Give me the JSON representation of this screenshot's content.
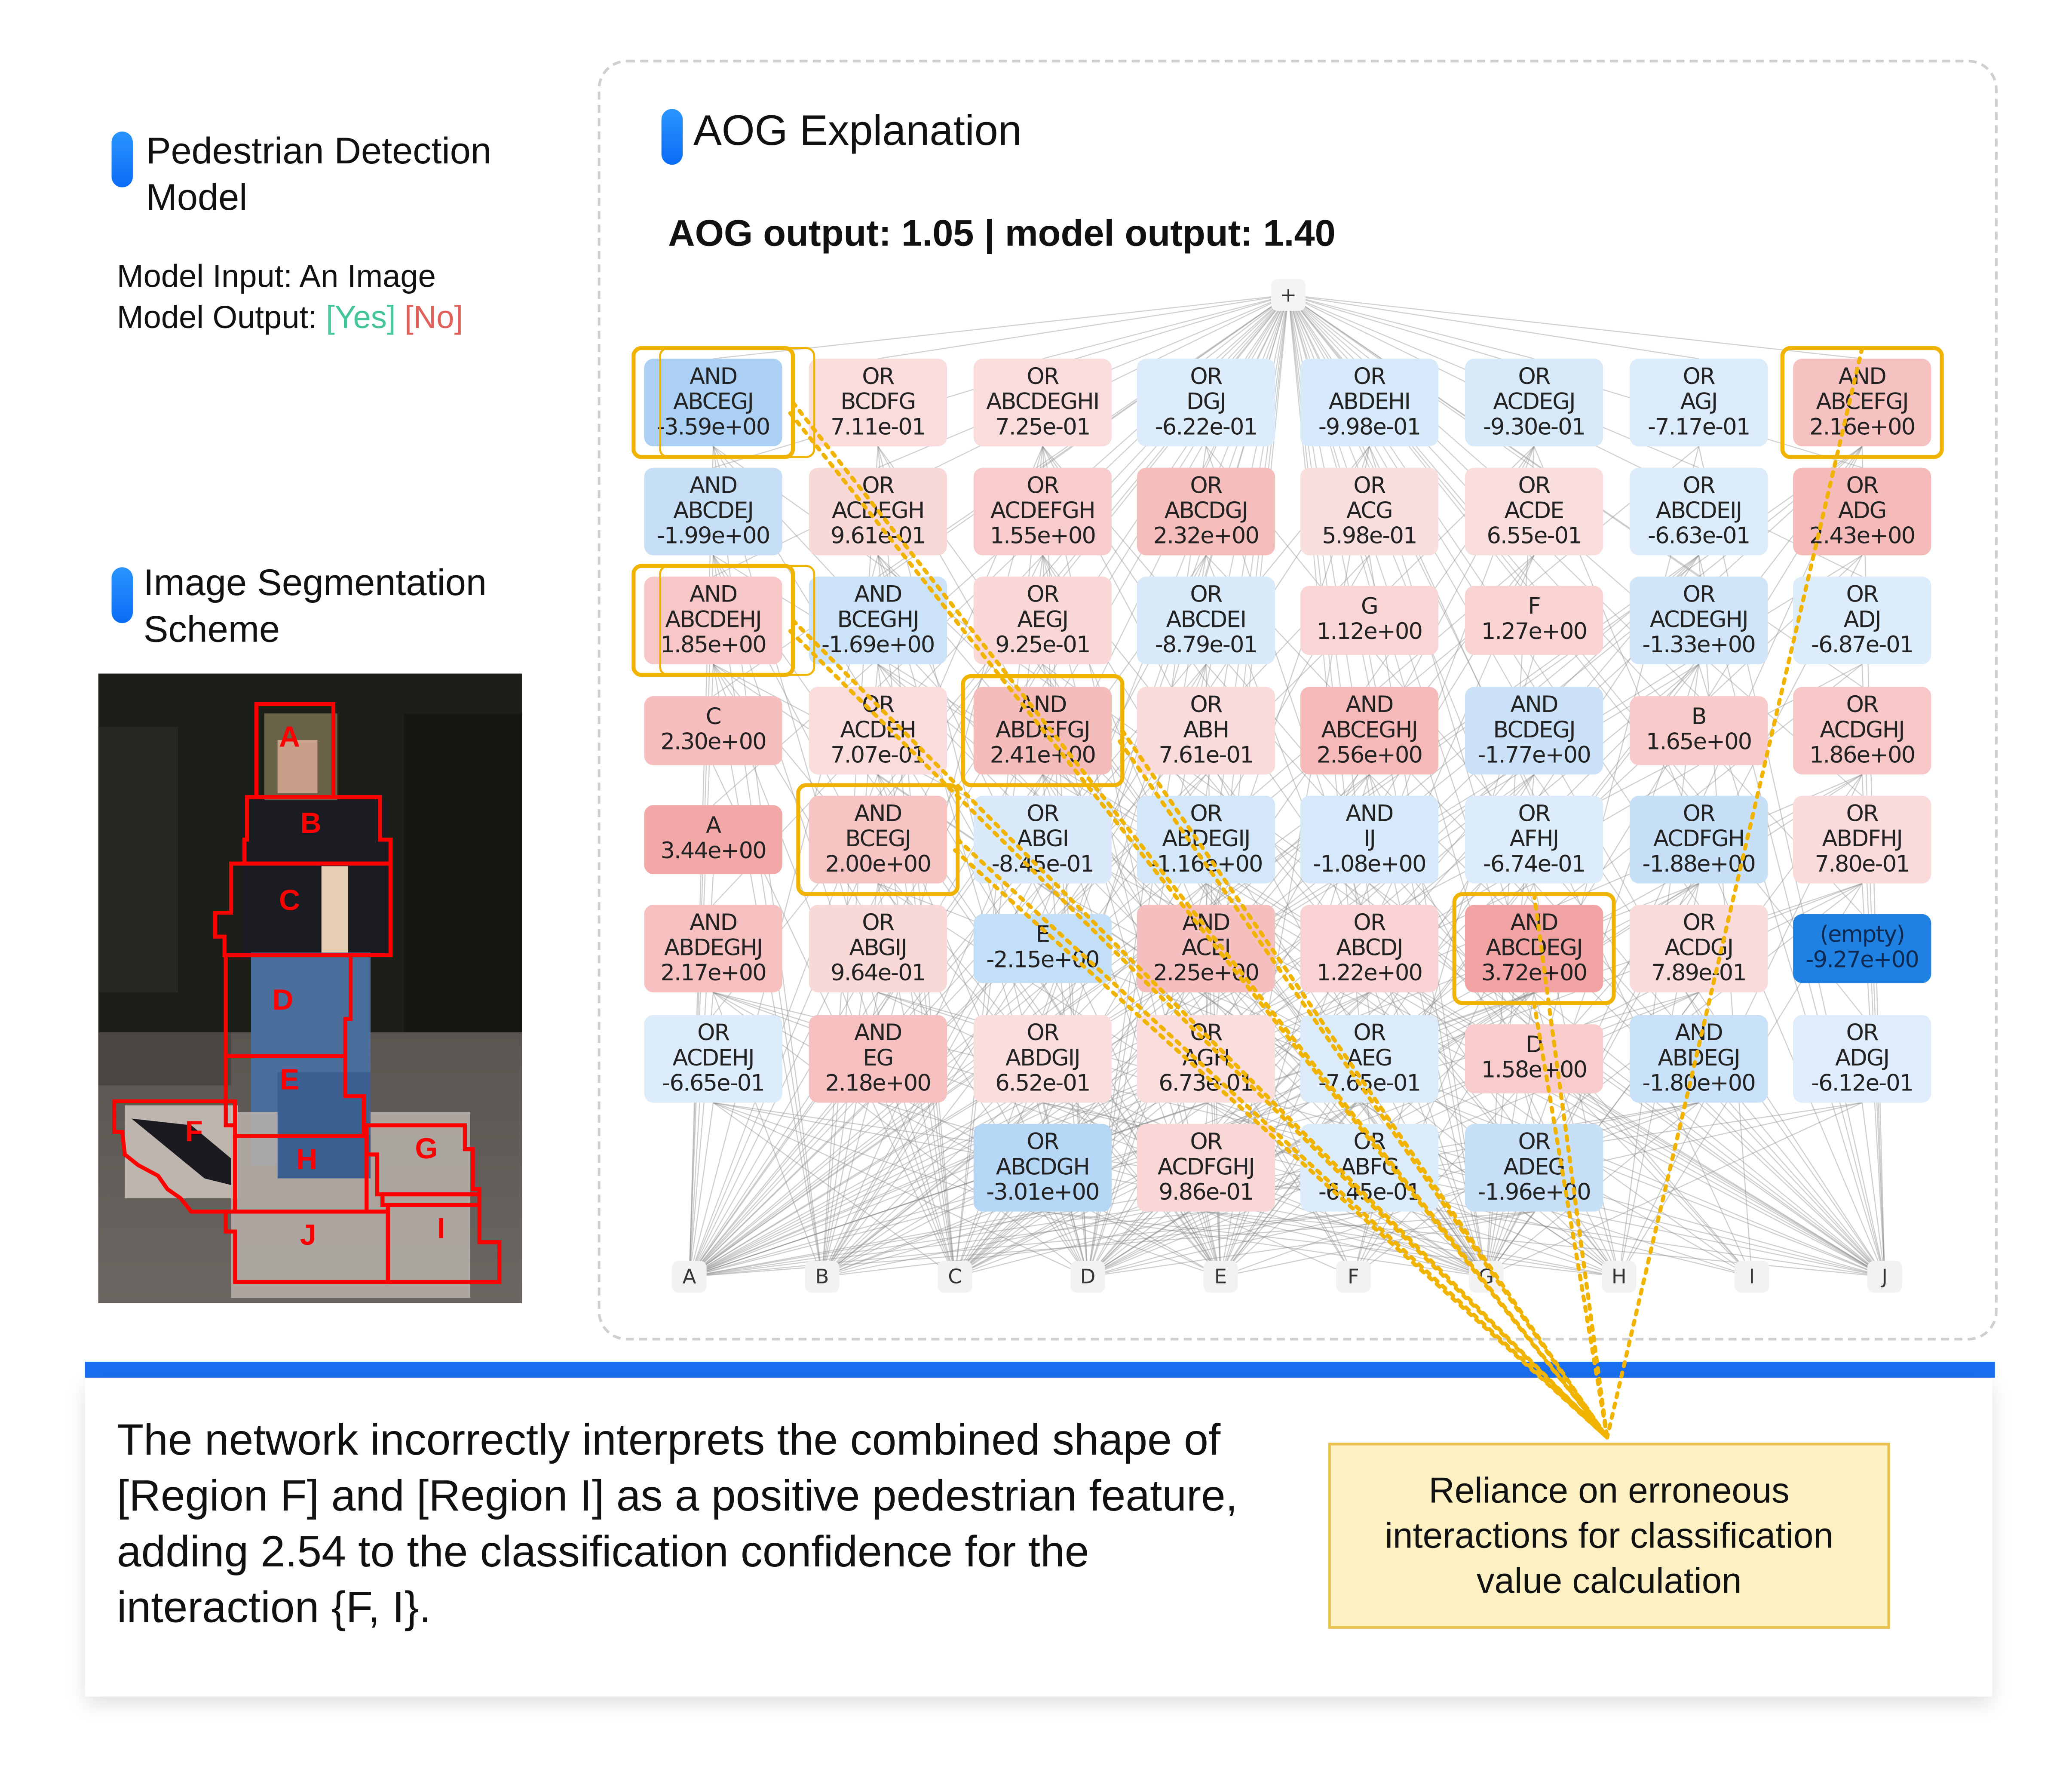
{
  "left": {
    "model_title_line1": "Pedestrian Detection",
    "model_title_line2": "Model",
    "input_label": "Model Input: An Image",
    "output_label": "Model Output: ",
    "output_yes": "[Yes]",
    "output_no": "[No]",
    "seg_title_line1": "Image Segmentation",
    "seg_title_line2": "Scheme",
    "regions": [
      "A",
      "B",
      "C",
      "D",
      "E",
      "F",
      "G",
      "H",
      "I",
      "J"
    ]
  },
  "aog": {
    "title": "AOG Explanation",
    "summary": "AOG output: 1.05 | model output: 1.40",
    "root_label": "+",
    "leaves": [
      "A",
      "B",
      "C",
      "D",
      "E",
      "F",
      "G",
      "H",
      "I",
      "J"
    ],
    "colors": {
      "positive": "#f2a3a3",
      "negative": "#a9cff3",
      "strong_negative": "#1f82e2",
      "highlight": "#f0b400"
    },
    "grid": [
      [
        {
          "t": "AND",
          "s": "ABCEGJ",
          "v": "-3.59e+00",
          "hl": true
        },
        {
          "t": "OR",
          "s": "BCDFG",
          "v": "7.11e-01"
        },
        {
          "t": "OR",
          "s": "ABCDEGHI",
          "v": "7.25e-01"
        },
        {
          "t": "OR",
          "s": "DGJ",
          "v": "-6.22e-01"
        },
        {
          "t": "OR",
          "s": "ABDEHI",
          "v": "-9.98e-01"
        },
        {
          "t": "OR",
          "s": "ACDEGJ",
          "v": "-9.30e-01"
        },
        {
          "t": "OR",
          "s": "AGJ",
          "v": "-7.17e-01"
        },
        {
          "t": "AND",
          "s": "ABCEFGJ",
          "v": "2.16e+00",
          "hl": true
        }
      ],
      [
        {
          "t": "AND",
          "s": "ABCDEJ",
          "v": "-1.99e+00"
        },
        {
          "t": "OR",
          "s": "ACDEGH",
          "v": "9.61e-01"
        },
        {
          "t": "OR",
          "s": "ACDEFGH",
          "v": "1.55e+00"
        },
        {
          "t": "OR",
          "s": "ABCDGJ",
          "v": "2.32e+00"
        },
        {
          "t": "OR",
          "s": "ACG",
          "v": "5.98e-01"
        },
        {
          "t": "OR",
          "s": "ACDE",
          "v": "6.55e-01"
        },
        {
          "t": "OR",
          "s": "ABCDEIJ",
          "v": "-6.63e-01"
        },
        {
          "t": "OR",
          "s": "ADG",
          "v": "2.43e+00"
        }
      ],
      [
        {
          "t": "AND",
          "s": "ABCDEHJ",
          "v": "1.85e+00",
          "hl": true
        },
        {
          "t": "AND",
          "s": "BCEGHJ",
          "v": "-1.69e+00"
        },
        {
          "t": "OR",
          "s": "AEGJ",
          "v": "9.25e-01"
        },
        {
          "t": "OR",
          "s": "ABCDEI",
          "v": "-8.79e-01"
        },
        {
          "t": "",
          "s": "G",
          "v": "1.12e+00"
        },
        {
          "t": "",
          "s": "F",
          "v": "1.27e+00"
        },
        {
          "t": "OR",
          "s": "ACDEGHJ",
          "v": "-1.33e+00"
        },
        {
          "t": "OR",
          "s": "ADJ",
          "v": "-6.87e-01"
        }
      ],
      [
        {
          "t": "",
          "s": "C",
          "v": "2.30e+00"
        },
        {
          "t": "OR",
          "s": "ACDEH",
          "v": "7.07e-01"
        },
        {
          "t": "AND",
          "s": "ABDEFGJ",
          "v": "2.41e+00",
          "hl": true
        },
        {
          "t": "OR",
          "s": "ABH",
          "v": "7.61e-01"
        },
        {
          "t": "AND",
          "s": "ABCEGHJ",
          "v": "2.56e+00"
        },
        {
          "t": "AND",
          "s": "BCDEGJ",
          "v": "-1.77e+00"
        },
        {
          "t": "",
          "s": "B",
          "v": "1.65e+00"
        },
        {
          "t": "OR",
          "s": "ACDGHJ",
          "v": "1.86e+00"
        }
      ],
      [
        {
          "t": "",
          "s": "A",
          "v": "3.44e+00"
        },
        {
          "t": "AND",
          "s": "BCEGJ",
          "v": "2.00e+00",
          "hl": true
        },
        {
          "t": "OR",
          "s": "ABGI",
          "v": "-8.45e-01"
        },
        {
          "t": "OR",
          "s": "ABDEGIJ",
          "v": "-1.16e+00"
        },
        {
          "t": "AND",
          "s": "IJ",
          "v": "-1.08e+00"
        },
        {
          "t": "OR",
          "s": "AFHJ",
          "v": "-6.74e-01"
        },
        {
          "t": "OR",
          "s": "ACDFGH",
          "v": "-1.88e+00"
        },
        {
          "t": "OR",
          "s": "ABDFHJ",
          "v": "7.80e-01"
        }
      ],
      [
        {
          "t": "AND",
          "s": "ABDEGHJ",
          "v": "2.17e+00"
        },
        {
          "t": "OR",
          "s": "ABGIJ",
          "v": "9.64e-01"
        },
        {
          "t": "",
          "s": "E",
          "v": "-2.15e+00"
        },
        {
          "t": "AND",
          "s": "ACEJ",
          "v": "2.25e+00"
        },
        {
          "t": "OR",
          "s": "ABCDJ",
          "v": "1.22e+00"
        },
        {
          "t": "AND",
          "s": "ABCDEGJ",
          "v": "3.72e+00",
          "hl": true
        },
        {
          "t": "OR",
          "s": "ACDGJ",
          "v": "7.89e-01"
        },
        {
          "t": "",
          "s": "(empty)",
          "v": "-9.27e+00"
        }
      ],
      [
        {
          "t": "OR",
          "s": "ACDEHJ",
          "v": "-6.65e-01"
        },
        {
          "t": "AND",
          "s": "EG",
          "v": "2.18e+00"
        },
        {
          "t": "OR",
          "s": "ABDGIJ",
          "v": "6.52e-01"
        },
        {
          "t": "OR",
          "s": "AGH",
          "v": "6.73e-01"
        },
        {
          "t": "OR",
          "s": "AEG",
          "v": "-7.65e-01"
        },
        {
          "t": "",
          "s": "D",
          "v": "1.58e+00"
        },
        {
          "t": "AND",
          "s": "ABDEGJ",
          "v": "-1.80e+00"
        },
        {
          "t": "OR",
          "s": "ADGJ",
          "v": "-6.12e-01"
        }
      ],
      [
        null,
        null,
        {
          "t": "OR",
          "s": "ABCDGH",
          "v": "-3.01e+00"
        },
        {
          "t": "OR",
          "s": "ACDFGHJ",
          "v": "9.86e-01"
        },
        {
          "t": "OR",
          "s": "ABFG",
          "v": "-6.45e-01"
        },
        {
          "t": "OR",
          "s": "ADEG",
          "v": "-1.96e+00"
        },
        null,
        null
      ]
    ]
  },
  "bottom": {
    "description": "The network incorrectly interprets the combined shape of [Region F] and [Region I] as a positive pedestrian feature, adding 2.54 to the classification confidence for the interaction {F, I}.",
    "callout": "Reliance on erroneous interactions for classification value calculation"
  }
}
